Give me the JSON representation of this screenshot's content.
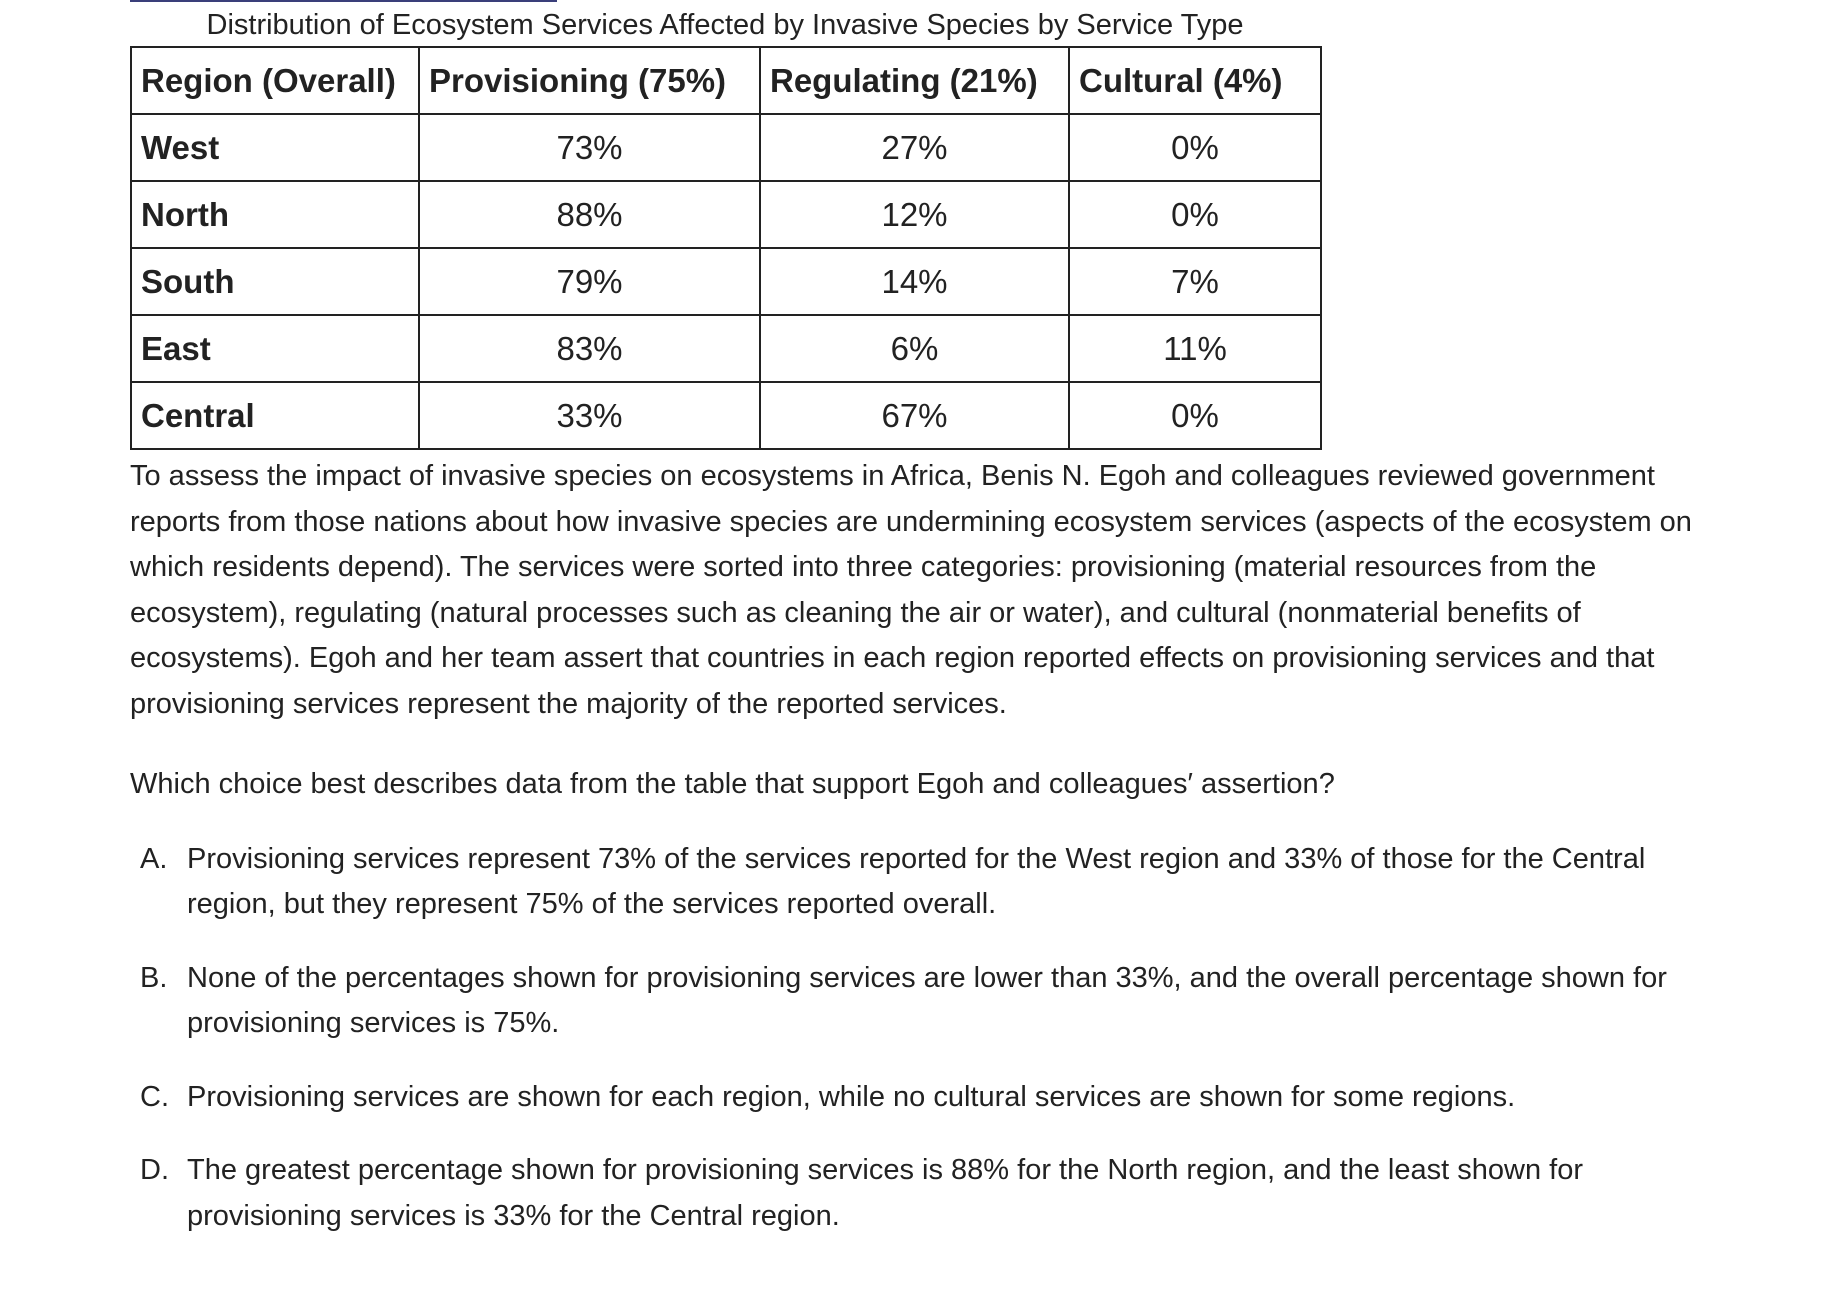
{
  "table": {
    "caption": "Distribution of Ecosystem Services Affected by Invasive Species by Service Type",
    "headers": [
      "Region (Overall)",
      "Provisioning (75%)",
      "Regulating (21%)",
      "Cultural (4%)"
    ],
    "rows": [
      [
        "West",
        "73%",
        "27%",
        "0%"
      ],
      [
        "North",
        "88%",
        "12%",
        "0%"
      ],
      [
        "South",
        "79%",
        "14%",
        "7%"
      ],
      [
        "East",
        "83%",
        "6%",
        "11%"
      ],
      [
        "Central",
        "33%",
        "67%",
        "0%"
      ]
    ]
  },
  "passage": "To assess the impact of invasive species on ecosystems in Africa, Benis N. Egoh and colleagues reviewed government reports from those nations about how invasive species are undermining ecosystem services (aspects of the ecosystem on which residents depend). The services were sorted into three categories: provisioning (material resources from the ecosystem), regulating (natural processes such as cleaning the air or water), and cultural (nonmaterial benefits of ecosystems). Egoh and her team assert that countries in each region reported effects on provisioning services and that provisioning services represent the majority of the reported services.",
  "question": "Which choice best describes data from the table that support Egoh and colleagues′ assertion?",
  "choices": [
    {
      "letter": "A.",
      "text": "Provisioning services represent 73% of the services reported for the West region and 33% of those for the Central region, but they represent 75% of the services reported overall."
    },
    {
      "letter": "B.",
      "text": "None of the percentages shown for provisioning services are lower than 33%, and the overall percentage shown for provisioning services is 75%."
    },
    {
      "letter": "C.",
      "text": "Provisioning services are shown for each region, while no cultural services are shown for some regions."
    },
    {
      "letter": "D.",
      "text": "The greatest percentage shown for provisioning services is 88% for the North region, and the least shown for provisioning services is 33% for the Central region."
    }
  ]
}
